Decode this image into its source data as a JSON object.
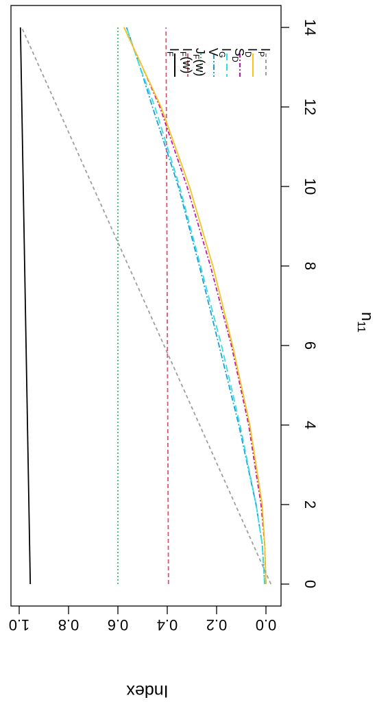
{
  "chart_data": {
    "type": "line",
    "orientation": "rotated-90-clockwise",
    "xlabel": "n",
    "xlabel_sub": "11",
    "ylabel": "Index",
    "xlim": [
      0,
      14
    ],
    "ylim": [
      0.0,
      1.0
    ],
    "x_ticks": [
      "0",
      "2",
      "4",
      "6",
      "8",
      "10",
      "12",
      "14"
    ],
    "y_ticks": [
      "0.0",
      "0.2",
      "0.4",
      "0.6",
      "0.8",
      "1.0"
    ],
    "grid": false,
    "legend_position": "top-right",
    "series": [
      {
        "name": "I",
        "sub": "F",
        "extra": "",
        "color": "#000000",
        "dash": "",
        "x": [
          0,
          14
        ],
        "y": [
          0.955,
          0.995
        ]
      },
      {
        "name": "I",
        "sub": "F",
        "extra": "(w)",
        "color": "#DF536B",
        "dash": "6,4",
        "x": [
          0,
          14
        ],
        "y": [
          0.395,
          0.405
        ]
      },
      {
        "name": "J",
        "sub": "F",
        "extra": "(w)",
        "color": "#22C55E",
        "dash": "2,3",
        "x": [
          0,
          14
        ],
        "y": [
          0.6,
          0.6
        ]
      },
      {
        "name": "V",
        "sub": "",
        "extra": "",
        "color": "#2297E6",
        "dash": "8,3,2,3",
        "x": [
          0,
          1,
          2,
          4,
          6,
          8,
          10,
          12,
          13,
          14
        ],
        "y": [
          0.005,
          0.015,
          0.04,
          0.11,
          0.19,
          0.27,
          0.355,
          0.46,
          0.51,
          0.565
        ]
      },
      {
        "name": "I",
        "sub": "G",
        "extra": "",
        "color": "#28E2E5",
        "dash": "10,5",
        "x": [
          0,
          1,
          2,
          4,
          6,
          8,
          10,
          12,
          13,
          14
        ],
        "y": [
          0.005,
          0.015,
          0.04,
          0.105,
          0.18,
          0.265,
          0.35,
          0.45,
          0.51,
          0.565
        ]
      },
      {
        "name": "S",
        "sub": "D",
        "extra": "",
        "color": "#CD0BBC",
        "dash": "6,3,2,3",
        "x": [
          0,
          1,
          2,
          4,
          6,
          8,
          10,
          12,
          13,
          14
        ],
        "y": [
          0.0,
          0.005,
          0.02,
          0.07,
          0.14,
          0.225,
          0.32,
          0.43,
          0.5,
          0.575
        ]
      },
      {
        "name": "I",
        "sub": "D",
        "extra": "",
        "color": "#F5C710",
        "dash": "",
        "x": [
          0,
          1,
          2,
          4,
          6,
          8,
          10,
          12,
          13,
          14
        ],
        "y": [
          0.0,
          0.005,
          0.015,
          0.065,
          0.135,
          0.215,
          0.31,
          0.425,
          0.5,
          0.575
        ]
      },
      {
        "name": "I",
        "sub": "P",
        "extra": "",
        "color": "#9E9E9E",
        "dash": "5,4",
        "x": [
          0,
          14
        ],
        "y": [
          -0.02,
          0.99
        ]
      }
    ]
  }
}
